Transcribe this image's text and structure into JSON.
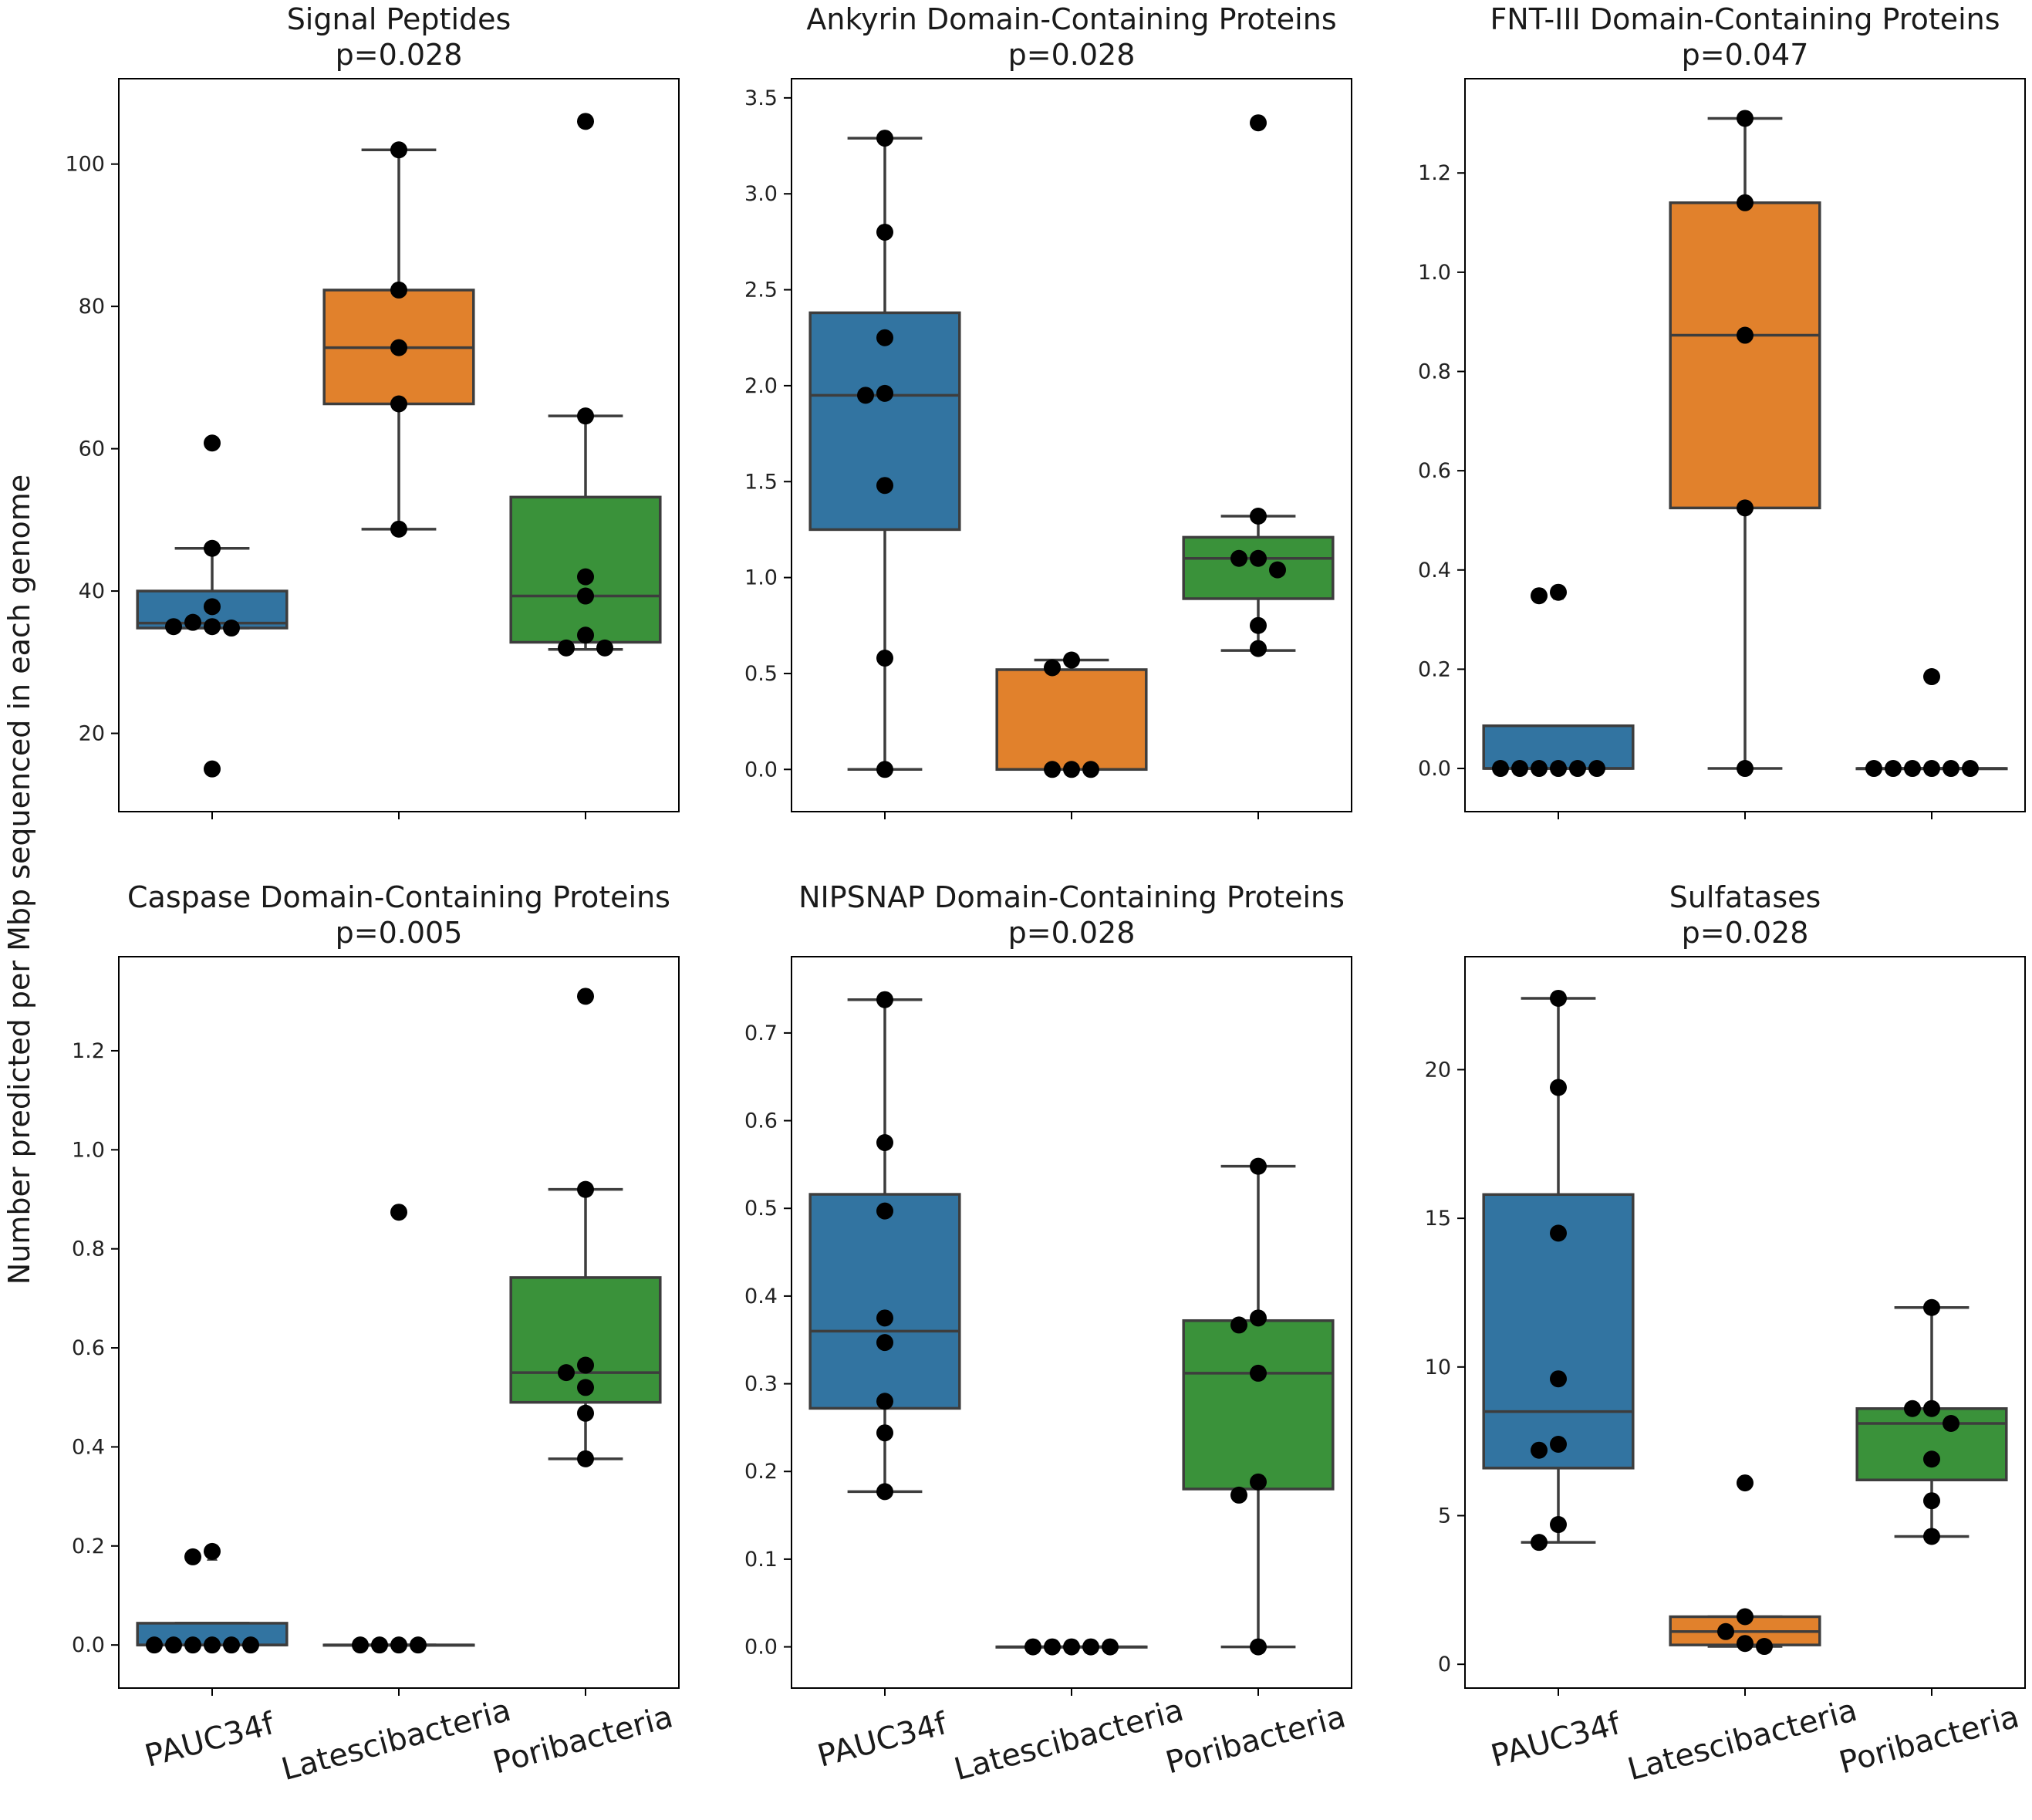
{
  "ylabel": "Number predicted per Mbp sequenced in each genome",
  "colors": {
    "PAUC34f": "#3274a1",
    "Latescibacteria": "#e1812c",
    "Poribacteria": "#3a923a",
    "point": "#000000",
    "line": "#3d3d3d"
  },
  "chart_data": [
    {
      "type": "box",
      "title": "Signal Peptides",
      "pvalue": "p=0.028",
      "categories": [
        "PAUC34f",
        "Latescibacteria",
        "Poribacteria"
      ],
      "ylim": [
        9,
        112
      ],
      "yticks": [
        20,
        40,
        60,
        80,
        100
      ],
      "ytick_labels": [
        "20",
        "40",
        "60",
        "80",
        "100"
      ],
      "boxes": [
        {
          "q1": 34.8,
          "median": 35.5,
          "q3": 40,
          "whislo": 34.8,
          "whishi": 46,
          "fliers": [
            60.8,
            15
          ]
        },
        {
          "q1": 66.3,
          "median": 74.2,
          "q3": 82.3,
          "whislo": 48.7,
          "whishi": 102,
          "fliers": []
        },
        {
          "q1": 32.8,
          "median": 39.3,
          "q3": 53.2,
          "whislo": 31.8,
          "whishi": 64.6,
          "fliers": [
            106
          ]
        }
      ],
      "points": [
        [
          60.8,
          46,
          37.8,
          35.6,
          35,
          34.8,
          35,
          15
        ],
        [
          102,
          82.3,
          74.2,
          66.3,
          48.7
        ],
        [
          106,
          64.6,
          42,
          39.3,
          33.8,
          32,
          32
        ]
      ]
    },
    {
      "type": "box",
      "title": "Ankyrin Domain-Containing Proteins",
      "pvalue": "p=0.028",
      "categories": [
        "PAUC34f",
        "Latescibacteria",
        "Poribacteria"
      ],
      "ylim": [
        -0.22,
        3.6
      ],
      "yticks": [
        0,
        0.5,
        1,
        1.5,
        2,
        2.5,
        3,
        3.5
      ],
      "ytick_labels": [
        "0.0",
        "0.5",
        "1.0",
        "1.5",
        "2.0",
        "2.5",
        "3.0",
        "3.5"
      ],
      "boxes": [
        {
          "q1": 1.25,
          "median": 1.95,
          "q3": 2.38,
          "whislo": 0,
          "whishi": 3.29,
          "fliers": []
        },
        {
          "q1": 0,
          "median": 0,
          "q3": 0.52,
          "whislo": 0,
          "whishi": 0.57,
          "fliers": []
        },
        {
          "q1": 0.89,
          "median": 1.1,
          "q3": 1.21,
          "whislo": 0.62,
          "whishi": 1.32,
          "fliers": [
            3.37
          ]
        }
      ],
      "points": [
        [
          3.29,
          2.8,
          2.25,
          1.96,
          1.95,
          1.48,
          0.58,
          0
        ],
        [
          0.57,
          0.53,
          0,
          0,
          0
        ],
        [
          3.37,
          1.32,
          1.1,
          1.1,
          1.04,
          0.75,
          0.63
        ]
      ]
    },
    {
      "type": "box",
      "title": "FNT-III Domain-Containing Proteins",
      "pvalue": "p=0.047",
      "categories": [
        "PAUC34f",
        "Latescibacteria",
        "Poribacteria"
      ],
      "ylim": [
        -0.087,
        1.39
      ],
      "yticks": [
        0,
        0.2,
        0.4,
        0.6,
        0.8,
        1,
        1.2
      ],
      "ytick_labels": [
        "0.0",
        "0.2",
        "0.4",
        "0.6",
        "0.8",
        "1.0",
        "1.2"
      ],
      "boxes": [
        {
          "q1": 0,
          "median": 0,
          "q3": 0.086,
          "whislo": 0,
          "whishi": 0.086,
          "fliers": [
            0.355,
            0.348
          ]
        },
        {
          "q1": 0.525,
          "median": 0.873,
          "q3": 1.14,
          "whislo": 0,
          "whishi": 1.31,
          "fliers": []
        },
        {
          "q1": 0,
          "median": 0,
          "q3": 0,
          "whislo": 0,
          "whishi": 0,
          "fliers": [
            0.185
          ]
        }
      ],
      "points": [
        [
          0.355,
          0.348,
          0,
          0,
          0,
          0,
          0,
          0
        ],
        [
          1.31,
          1.14,
          0.873,
          0.525,
          0
        ],
        [
          0.185,
          0,
          0,
          0,
          0,
          0,
          0
        ]
      ]
    },
    {
      "type": "box",
      "title": "Caspase Domain-Containing Proteins",
      "pvalue": "p=0.005",
      "categories": [
        "PAUC34f",
        "Latescibacteria",
        "Poribacteria"
      ],
      "ylim": [
        -0.087,
        1.39
      ],
      "yticks": [
        0,
        0.2,
        0.4,
        0.6,
        0.8,
        1,
        1.2
      ],
      "ytick_labels": [
        "0.0",
        "0.2",
        "0.4",
        "0.6",
        "0.8",
        "1.0",
        "1.2"
      ],
      "boxes": [
        {
          "q1": 0,
          "median": 0,
          "q3": 0.044,
          "whislo": 0,
          "whishi": 0.044,
          "fliers": [
            0.189,
            0.178
          ]
        },
        {
          "q1": 0,
          "median": 0,
          "q3": 0,
          "whislo": 0,
          "whishi": 0,
          "fliers": [
            0.874
          ]
        },
        {
          "q1": 0.49,
          "median": 0.55,
          "q3": 0.742,
          "whislo": 0.376,
          "whishi": 0.92,
          "fliers": [
            1.31
          ]
        }
      ],
      "points": [
        [
          0.189,
          0.178,
          0,
          0,
          0,
          0,
          0,
          0
        ],
        [
          0.874,
          0,
          0,
          0,
          0
        ],
        [
          1.31,
          0.92,
          0.565,
          0.55,
          0.52,
          0.468,
          0.376
        ]
      ]
    },
    {
      "type": "box",
      "title": "NIPSNAP Domain-Containing Proteins",
      "pvalue": "p=0.028",
      "categories": [
        "PAUC34f",
        "Latescibacteria",
        "Poribacteria"
      ],
      "ylim": [
        -0.047,
        0.787
      ],
      "yticks": [
        0,
        0.1,
        0.2,
        0.3,
        0.4,
        0.5,
        0.6,
        0.7
      ],
      "ytick_labels": [
        "0.0",
        "0.1",
        "0.2",
        "0.3",
        "0.4",
        "0.5",
        "0.6",
        "0.7"
      ],
      "boxes": [
        {
          "q1": 0.272,
          "median": 0.36,
          "q3": 0.516,
          "whislo": 0.177,
          "whishi": 0.738,
          "fliers": []
        },
        {
          "q1": 0,
          "median": 0,
          "q3": 0,
          "whislo": 0,
          "whishi": 0,
          "fliers": []
        },
        {
          "q1": 0.18,
          "median": 0.312,
          "q3": 0.372,
          "whislo": 0,
          "whishi": 0.548,
          "fliers": []
        }
      ],
      "points": [
        [
          0.738,
          0.575,
          0.497,
          0.375,
          0.347,
          0.28,
          0.244,
          0.177
        ],
        [
          0,
          0,
          0,
          0,
          0
        ],
        [
          0.548,
          0.375,
          0.367,
          0.312,
          0.188,
          0.173,
          0
        ]
      ]
    },
    {
      "type": "box",
      "title": "Sulfatases",
      "pvalue": "p=0.028",
      "categories": [
        "PAUC34f",
        "Latescibacteria",
        "Poribacteria"
      ],
      "ylim": [
        -0.8,
        23.8
      ],
      "yticks": [
        0,
        5,
        10,
        15,
        20
      ],
      "ytick_labels": [
        "0",
        "5",
        "10",
        "15",
        "20"
      ],
      "boxes": [
        {
          "q1": 6.6,
          "median": 8.5,
          "q3": 15.8,
          "whislo": 4.1,
          "whishi": 22.4,
          "fliers": []
        },
        {
          "q1": 0.65,
          "median": 1.1,
          "q3": 1.6,
          "whislo": 0.6,
          "whishi": 1.6,
          "fliers": [
            6.1
          ]
        },
        {
          "q1": 6.2,
          "median": 8.1,
          "q3": 8.6,
          "whislo": 4.3,
          "whishi": 12,
          "fliers": []
        }
      ],
      "points": [
        [
          22.4,
          19.4,
          14.5,
          9.6,
          7.4,
          7.2,
          4.7,
          4.1
        ],
        [
          6.1,
          1.6,
          1.1,
          0.7,
          0.6
        ],
        [
          12,
          8.6,
          8.6,
          8.1,
          6.9,
          5.5,
          4.3
        ]
      ]
    }
  ]
}
